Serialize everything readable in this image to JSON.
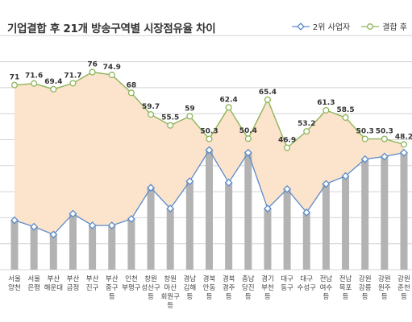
{
  "title": "기업결합 후 21개 방송구역별 시장점유율 차이",
  "legend": [
    {
      "label": "2위 사업자",
      "color": "#5b8bc9",
      "marker": "diamond"
    },
    {
      "label": "결합 후",
      "color": "#8db55a",
      "marker": "circle"
    }
  ],
  "chart_data": {
    "type": "line",
    "categories": [
      [
        "서울",
        "양천"
      ],
      [
        "서울",
        "은평"
      ],
      [
        "부산",
        "해운대"
      ],
      [
        "부산",
        "금정"
      ],
      [
        "부산",
        "진구"
      ],
      [
        "부산",
        "중구",
        "등"
      ],
      [
        "인천",
        "부평구"
      ],
      [
        "창원",
        "성산구",
        "등"
      ],
      [
        "창원",
        "마산",
        "회원구",
        "등"
      ],
      [
        "경남",
        "김해",
        "등"
      ],
      [
        "경북",
        "안동",
        "등"
      ],
      [
        "경북",
        "경주",
        "등"
      ],
      [
        "충남",
        "당진",
        "등"
      ],
      [
        "경기",
        "부천",
        "등"
      ],
      [
        "대구",
        "동구"
      ],
      [
        "대구",
        "수성구"
      ],
      [
        "전남",
        "여수",
        "등"
      ],
      [
        "전남",
        "목포",
        "등"
      ],
      [
        "강원",
        "강릉",
        "등"
      ],
      [
        "강원",
        "원주",
        "등"
      ],
      [
        "강원",
        "춘천",
        "등"
      ]
    ],
    "series": [
      {
        "name": "결합 후",
        "values": [
          71,
          71.6,
          69.4,
          71.7,
          76,
          74.9,
          68,
          59.7,
          55.5,
          59,
          50.3,
          62.4,
          50.4,
          65.4,
          46.9,
          53.2,
          61.3,
          58.5,
          50.3,
          50.3,
          48.2
        ],
        "labels": [
          "71",
          "71.6",
          "69.4",
          "71.7",
          "76",
          "74.9",
          "68",
          "59.7",
          "55.5",
          "59",
          "50.3",
          "62.4",
          "50.4",
          "65.4",
          "46.9",
          "53.2",
          "61.3",
          "58.5",
          "50.3",
          "50.3",
          "48.2"
        ]
      },
      {
        "name": "2위 사업자",
        "values": [
          19,
          16.5,
          13.5,
          21.5,
          17,
          17,
          19.5,
          31.5,
          23.5,
          34,
          46,
          33.5,
          45,
          23.5,
          31,
          22,
          33,
          36,
          42.5,
          43.5,
          45
        ]
      }
    ],
    "ylim": [
      0,
      90
    ],
    "grid": true,
    "area_fill": "#fbe3cc",
    "bar_color": "#b3b3b3",
    "line_colors": {
      "combined": "#8db55a",
      "second": "#5b8bc9"
    }
  }
}
